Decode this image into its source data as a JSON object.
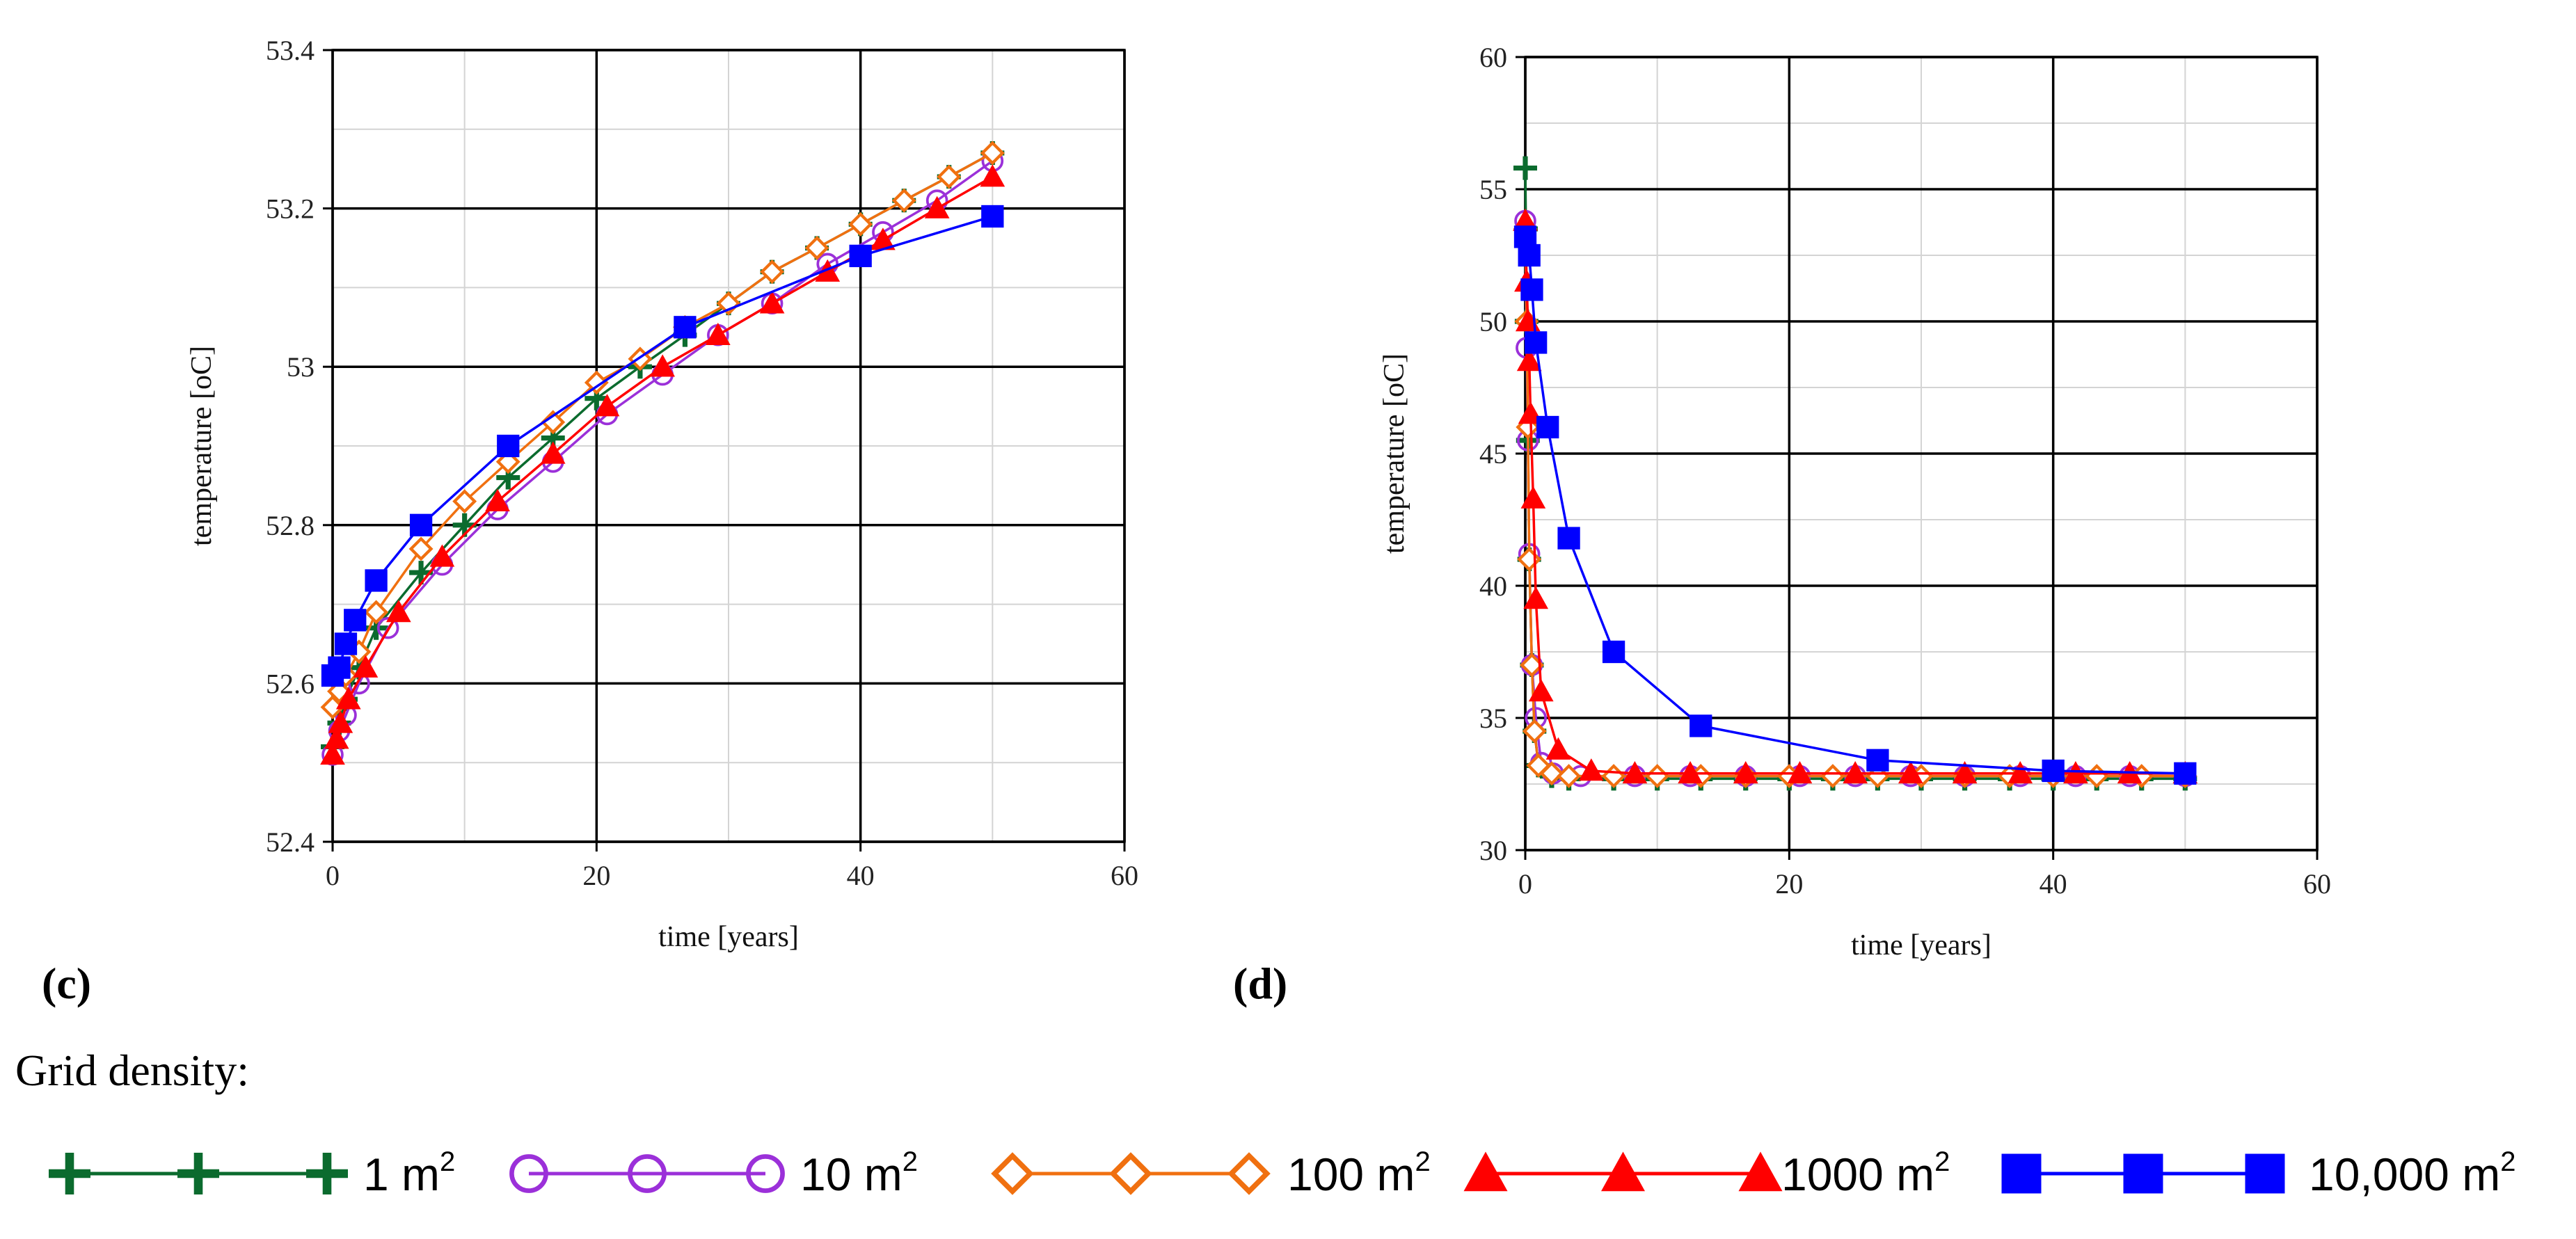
{
  "chart_data": [
    {
      "panel": "(c)",
      "type": "line",
      "xlabel": "time [years]",
      "ylabel": "temperature [oC]",
      "xlim": [
        0,
        60
      ],
      "ylim": [
        52.4,
        53.4
      ],
      "xticks": [
        "0",
        "20",
        "40",
        "60"
      ],
      "yticks": [
        "52.4",
        "52.6",
        "52.8",
        "53",
        "53.2",
        "53.4"
      ],
      "grid": true,
      "series": [
        {
          "name": "1 m2",
          "x": [
            0,
            0.5,
            1,
            2,
            3.3,
            6.7,
            10,
            13.3,
            16.7,
            20,
            23.3,
            26.7,
            30,
            33.3,
            36.7,
            40,
            43.3,
            46.7,
            50
          ],
          "y": [
            52.52,
            52.55,
            52.58,
            52.62,
            52.67,
            52.74,
            52.8,
            52.86,
            52.91,
            52.96,
            53.0,
            53.04,
            53.08,
            53.12,
            53.15,
            53.18,
            53.21,
            53.24,
            53.27
          ]
        },
        {
          "name": "10 m2",
          "x": [
            0,
            0.5,
            1,
            2,
            4.2,
            8.3,
            12.5,
            16.7,
            20.8,
            25,
            29.2,
            33.3,
            37.5,
            41.7,
            45.8,
            50
          ],
          "y": [
            52.51,
            52.54,
            52.56,
            52.6,
            52.67,
            52.75,
            52.82,
            52.88,
            52.94,
            52.99,
            53.04,
            53.08,
            53.13,
            53.17,
            53.21,
            53.26
          ]
        },
        {
          "name": "100 m2",
          "x": [
            0,
            0.5,
            1,
            2,
            3.3,
            6.7,
            10,
            13.3,
            16.7,
            20,
            23.3,
            26.7,
            30,
            33.3,
            36.7,
            40,
            43.3,
            46.7,
            50
          ],
          "y": [
            52.57,
            52.59,
            52.61,
            52.64,
            52.69,
            52.77,
            52.83,
            52.88,
            52.93,
            52.98,
            53.01,
            53.05,
            53.08,
            53.12,
            53.15,
            53.18,
            53.21,
            53.24,
            53.27
          ]
        },
        {
          "name": "1000 m2",
          "x": [
            0,
            0.3,
            0.6,
            1.2,
            2.5,
            5,
            8.3,
            12.5,
            16.7,
            20.8,
            25,
            29.2,
            33.3,
            37.5,
            41.7,
            45.8,
            50
          ],
          "y": [
            52.51,
            52.53,
            52.55,
            52.58,
            52.62,
            52.69,
            52.76,
            52.83,
            52.89,
            52.95,
            53.0,
            53.04,
            53.08,
            53.12,
            53.16,
            53.2,
            53.24
          ]
        },
        {
          "name": "10,000 m2",
          "x": [
            0,
            0.5,
            1,
            1.7,
            3.3,
            6.7,
            13.3,
            26.7,
            40,
            50
          ],
          "y": [
            52.61,
            52.62,
            52.65,
            52.68,
            52.73,
            52.8,
            52.9,
            53.05,
            53.14,
            53.19
          ]
        }
      ]
    },
    {
      "panel": "(d)",
      "type": "line",
      "xlabel": "time [years]",
      "ylabel": "temperature [oC]",
      "xlim": [
        0,
        60
      ],
      "ylim": [
        30,
        60
      ],
      "xticks": [
        "0",
        "20",
        "40",
        "60"
      ],
      "yticks": [
        "30",
        "35",
        "40",
        "45",
        "50",
        "55",
        "60"
      ],
      "grid": true,
      "series": [
        {
          "name": "1 m2",
          "x": [
            0,
            0.05,
            0.1,
            0.2,
            0.3,
            0.5,
            0.7,
            1,
            2,
            3.3,
            6.7,
            10,
            13.3,
            16.7,
            20,
            23.3,
            26.7,
            30,
            33.3,
            36.7,
            40,
            43.3,
            46.7,
            50
          ],
          "y": [
            55.8,
            53.5,
            50,
            45.5,
            41,
            37,
            34.5,
            33.2,
            32.8,
            32.7,
            32.7,
            32.7,
            32.7,
            32.7,
            32.7,
            32.7,
            32.7,
            32.7,
            32.7,
            32.7,
            32.7,
            32.7,
            32.7,
            32.7
          ]
        },
        {
          "name": "10 m2",
          "x": [
            0,
            0.1,
            0.2,
            0.3,
            0.5,
            0.8,
            1.2,
            2.1,
            4.2,
            8.3,
            12.5,
            16.7,
            20.8,
            25,
            29.2,
            33.3,
            37.5,
            41.7,
            45.8,
            50
          ],
          "y": [
            53.8,
            49,
            45.5,
            41.2,
            37,
            35,
            33.3,
            32.9,
            32.8,
            32.8,
            32.8,
            32.8,
            32.8,
            32.8,
            32.8,
            32.8,
            32.8,
            32.8,
            32.8,
            32.8
          ]
        },
        {
          "name": "100 m2",
          "x": [
            0,
            0.1,
            0.2,
            0.3,
            0.5,
            0.7,
            1,
            2,
            3.3,
            6.7,
            10,
            13.3,
            16.7,
            20,
            23.3,
            26.7,
            30,
            33.3,
            36.7,
            40,
            43.3,
            46.7,
            50
          ],
          "y": [
            53.5,
            50,
            46,
            41,
            37,
            34.5,
            33.2,
            32.9,
            32.8,
            32.8,
            32.8,
            32.8,
            32.8,
            32.8,
            32.8,
            32.8,
            32.8,
            32.8,
            32.8,
            32.8,
            32.8,
            32.8,
            32.8
          ]
        },
        {
          "name": "1000 m2",
          "x": [
            0,
            0.1,
            0.2,
            0.3,
            0.4,
            0.6,
            0.8,
            1.2,
            2.5,
            5,
            8.3,
            12.5,
            16.7,
            20.8,
            25,
            29.2,
            33.3,
            37.5,
            41.7,
            45.8,
            50
          ],
          "y": [
            53.8,
            51.5,
            50,
            48.5,
            46.5,
            43.3,
            39.5,
            36,
            33.8,
            33.0,
            32.9,
            32.9,
            32.9,
            32.9,
            32.9,
            32.9,
            32.9,
            32.9,
            32.9,
            32.9,
            32.9
          ]
        },
        {
          "name": "10,000 m2",
          "x": [
            0,
            0.3,
            0.5,
            0.8,
            1.7,
            3.3,
            6.7,
            13.3,
            26.7,
            40,
            50
          ],
          "y": [
            53.2,
            52.5,
            51.2,
            49.2,
            46.0,
            41.8,
            37.5,
            34.7,
            33.4,
            33.0,
            32.9
          ]
        }
      ]
    }
  ],
  "legend": {
    "title": "Grid density:",
    "items": [
      {
        "label": "1 m",
        "sup": "2",
        "color": "#0b6b2e",
        "marker": "plus"
      },
      {
        "label": "10 m",
        "sup": "2",
        "color": "#9b30d9",
        "marker": "circle"
      },
      {
        "label": "100 m",
        "sup": "2",
        "color": "#f07010",
        "marker": "diamond"
      },
      {
        "label": "1000 m",
        "sup": "2",
        "color": "#ff0000",
        "marker": "triangle"
      },
      {
        "label": "10,000 m",
        "sup": "2",
        "color": "#0000ff",
        "marker": "square"
      }
    ]
  },
  "series_style": {
    "1 m2": {
      "color": "#0b6b2e",
      "marker": "plus"
    },
    "10 m2": {
      "color": "#9b30d9",
      "marker": "circle"
    },
    "100 m2": {
      "color": "#f07010",
      "marker": "diamond"
    },
    "1000 m2": {
      "color": "#ff0000",
      "marker": "triangle"
    },
    "10,000 m2": {
      "color": "#0000ff",
      "marker": "square"
    }
  }
}
